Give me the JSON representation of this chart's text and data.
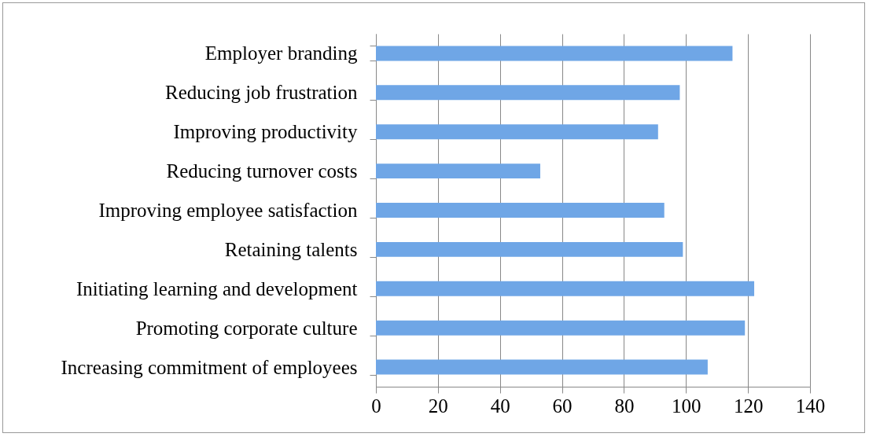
{
  "chart_data": {
    "type": "bar",
    "orientation": "horizontal",
    "categories": [
      "Employer branding",
      "Reducing job frustration",
      "Improving productivity",
      "Reducing turnover costs",
      "Improving employee satisfaction",
      "Retaining talents",
      "Initiating learning and development",
      "Promoting corporate culture",
      "Increasing commitment of employees"
    ],
    "values": [
      115,
      98,
      91,
      53,
      93,
      99,
      122,
      119,
      107
    ],
    "color": "#6fa6e6",
    "xlim": [
      0,
      140
    ],
    "xticks": [
      0,
      20,
      40,
      60,
      80,
      100,
      120,
      140
    ],
    "grid": "x"
  }
}
